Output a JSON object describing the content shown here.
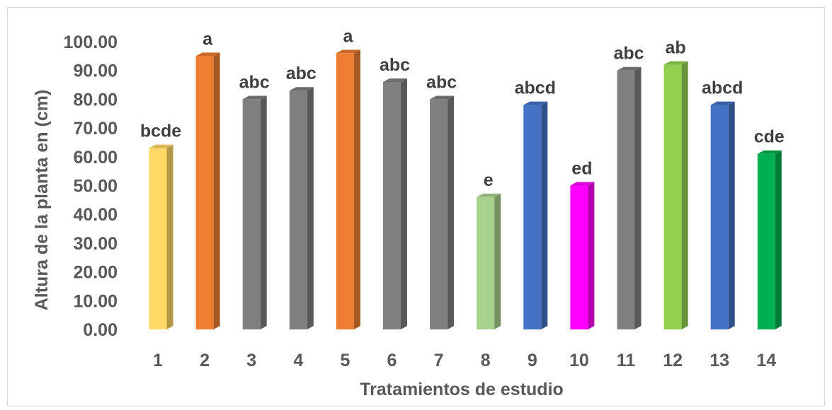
{
  "chart_data": {
    "type": "bar",
    "title": "",
    "xlabel": "Tratamientos de estudio",
    "ylabel": "Altura de la planta en (cm)",
    "ylim": [
      0,
      100
    ],
    "yticks": [
      "0.00",
      "10.00",
      "20.00",
      "30.00",
      "40.00",
      "50.00",
      "60.00",
      "70.00",
      "80.00",
      "90.00",
      "100.00"
    ],
    "grid": false,
    "legend": "none",
    "categories": [
      "1",
      "2",
      "3",
      "4",
      "5",
      "6",
      "7",
      "8",
      "9",
      "10",
      "11",
      "12",
      "13",
      "14"
    ],
    "values": [
      63,
      95,
      80,
      83,
      96,
      86,
      80,
      46,
      78,
      50,
      90,
      92,
      78,
      61
    ],
    "data_labels": [
      "bcde",
      "a",
      "abc",
      "abc",
      "a",
      "abc",
      "abc",
      "e",
      "abcd",
      "ed",
      "abc",
      "ab",
      "abcd",
      "cde"
    ],
    "colors": [
      "#FFD966",
      "#ED7D31",
      "#7F7F7F",
      "#7F7F7F",
      "#ED7D31",
      "#7F7F7F",
      "#7F7F7F",
      "#A9D18E",
      "#4472C4",
      "#FF00FF",
      "#7F7F7F",
      "#92D050",
      "#4472C4",
      "#00B050"
    ]
  }
}
